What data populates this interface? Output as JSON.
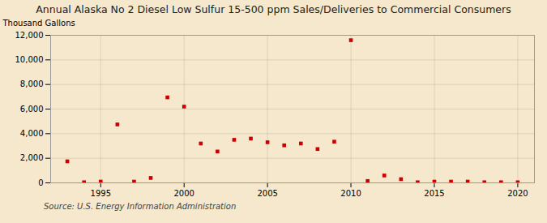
{
  "chart_data": {
    "type": "scatter",
    "title": "Annual Alaska No 2 Diesel Low Sulfur 15-500 ppm Sales/Deliveries to Commercial Consumers",
    "ylabel": "Thousand Gallons",
    "source": "Source: U.S. Energy Information Administration",
    "x": [
      1993,
      1994,
      1995,
      1996,
      1997,
      1998,
      1999,
      2000,
      2001,
      2002,
      2003,
      2004,
      2005,
      2006,
      2007,
      2008,
      2009,
      2010,
      2011,
      2012,
      2013,
      2014,
      2015,
      2016,
      2017,
      2018,
      2019,
      2020
    ],
    "values": [
      1750,
      50,
      100,
      4750,
      100,
      400,
      6950,
      6200,
      3200,
      2550,
      3500,
      3600,
      3300,
      3050,
      3200,
      2750,
      3350,
      11600,
      150,
      600,
      300,
      50,
      100,
      100,
      100,
      50,
      50,
      50
    ],
    "color": "#cc0000",
    "marker": "square",
    "xlim": [
      1992,
      2021
    ],
    "xticks": [
      1995,
      2000,
      2005,
      2010,
      2015,
      2020
    ],
    "ylim": [
      0,
      12000
    ],
    "yticks": [
      0,
      {
        "value": 2000,
        "label": "2,000"
      },
      {
        "value": 4000,
        "label": "4,000"
      },
      {
        "value": 6000,
        "label": "6,000"
      },
      {
        "value": 8000,
        "label": "8,000"
      },
      {
        "value": 10000,
        "label": "10,000"
      },
      {
        "value": 12000,
        "label": "12,000"
      }
    ],
    "grid": true
  }
}
